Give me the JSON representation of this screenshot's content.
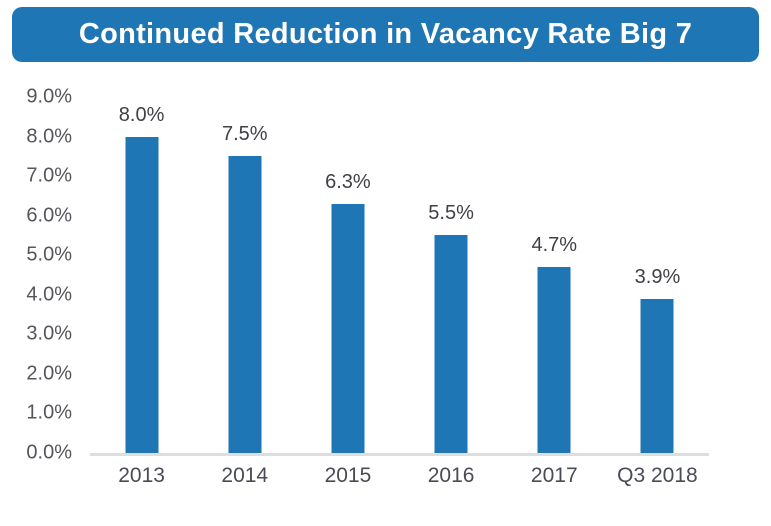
{
  "header": {
    "title": "Continued Reduction in Vacancy Rate Big 7"
  },
  "colors": {
    "banner_bg": "#1F76B5",
    "banner_text": "#FFFFFF",
    "bar_color": "#1F76B5",
    "axis_line": "#DEDEDE",
    "tick_text": "#54565C",
    "data_label_text": "#3F4146"
  },
  "chart_data": {
    "type": "bar",
    "title": "Continued Reduction in Vacancy Rate Big 7",
    "categories": [
      "2013",
      "2014",
      "2015",
      "2016",
      "2017",
      "Q3 2018"
    ],
    "values": [
      8.0,
      7.5,
      6.3,
      5.5,
      4.7,
      3.9
    ],
    "data_labels": [
      "8.0%",
      "7.5%",
      "6.3%",
      "5.5%",
      "4.7%",
      "3.9%"
    ],
    "xlabel": "",
    "ylabel": "",
    "ylim": [
      0,
      9
    ],
    "y_ticks": [
      "9.0%",
      "8.0%",
      "7.0%",
      "6.0%",
      "5.0%",
      "4.0%",
      "3.0%",
      "2.0%",
      "1.0%",
      "0.0%"
    ],
    "grid": false,
    "legend": "none",
    "data_labels_position": "above-bars"
  }
}
